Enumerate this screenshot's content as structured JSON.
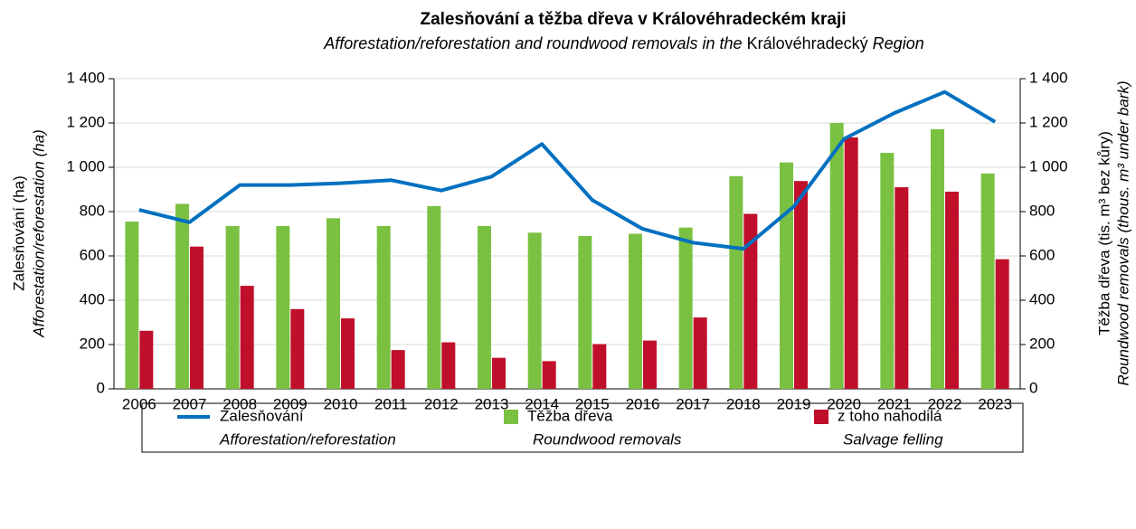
{
  "chart_data": {
    "type": "bar-line",
    "title": "Zalesňování a těžba dřeva v Královéhradeckém kraji",
    "subtitle": [
      "Afforestation/reforestation and roundwood  removals  in the",
      "Královéhradecký",
      "Region"
    ],
    "y_label": [
      "Zalesňování (ha)",
      "Afforestation/reforestation (ha)"
    ],
    "y2_label": [
      "Těžba dřeva (tis. m³ bez kůry)",
      "Roundwood removals (thous. m³ under bark)"
    ],
    "categories": [
      "2006",
      "2007",
      "2008",
      "2009",
      "2010",
      "2011",
      "2012",
      "2013",
      "2014",
      "2015",
      "2016",
      "2017",
      "2018",
      "2019",
      "2020",
      "2021",
      "2022",
      "2023"
    ],
    "series": [
      {
        "name": "Zalesňování",
        "name_en": "Afforestation/reforestation",
        "type": "line",
        "axis": "y",
        "color": "#0070c0",
        "values": [
          808,
          752,
          920,
          920,
          928,
          942,
          895,
          958,
          1105,
          852,
          722,
          660,
          632,
          822,
          1128,
          1245,
          1340,
          1205
        ]
      },
      {
        "name": "Těžba dřeva",
        "name_en": "Roundwood removals",
        "type": "bar",
        "axis": "y2",
        "color": "#7ac142",
        "values": [
          755,
          835,
          735,
          735,
          770,
          735,
          825,
          735,
          705,
          690,
          700,
          728,
          960,
          1022,
          1200,
          1065,
          1172,
          972
        ]
      },
      {
        "name": "z toho nahodilá",
        "name_en": "Salvage felling",
        "type": "bar",
        "axis": "y2",
        "color": "#c00f2a",
        "values": [
          262,
          642,
          465,
          360,
          318,
          175,
          210,
          140,
          125,
          202,
          218,
          322,
          790,
          938,
          1135,
          910,
          890,
          585
        ]
      }
    ],
    "ylim": [
      0,
      1400
    ],
    "yticks": [
      0,
      200,
      400,
      600,
      800,
      {
        "value": 1000,
        "label": "1 000"
      },
      {
        "value": 1200,
        "label": "1 200"
      },
      {
        "value": 1400,
        "label": "1 400"
      }
    ],
    "y2lim": [
      0,
      1400
    ],
    "y2ticks": [
      0,
      200,
      400,
      600,
      800,
      {
        "value": 1000,
        "label": "1 000"
      },
      {
        "value": 1200,
        "label": "1 200"
      },
      {
        "value": 1400,
        "label": "1 400"
      }
    ],
    "grid": true
  }
}
